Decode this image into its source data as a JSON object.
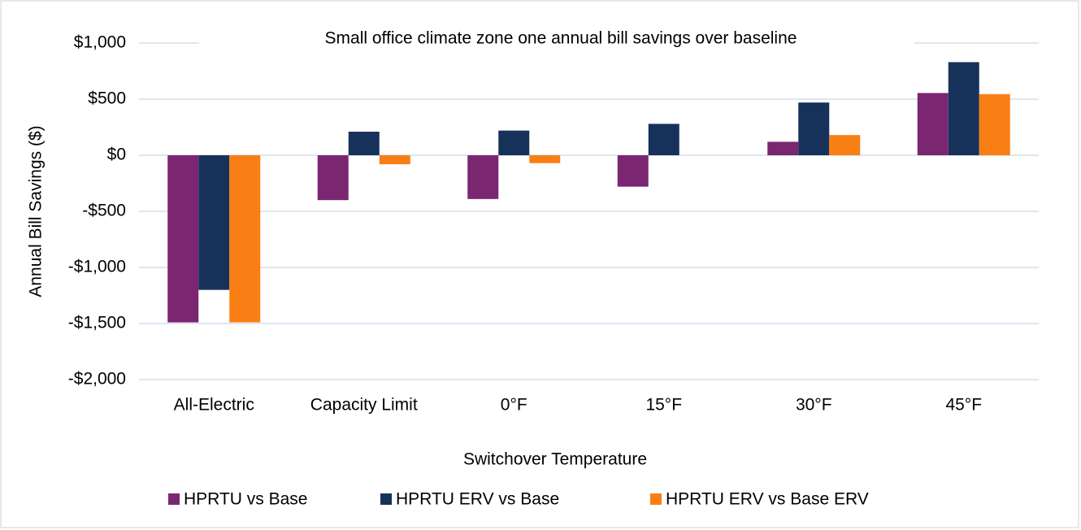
{
  "chart_data": {
    "type": "bar",
    "title": "Small office climate zone one annual bill savings over baseline",
    "x_label": "Switchover Temperature",
    "y_label": "Annual Bill Savings ($)",
    "categories": [
      "All-Electric",
      "Capacity Limit",
      "0°F",
      "15°F",
      "30°F",
      "45°F"
    ],
    "series": [
      {
        "name": "HPRTU vs Base",
        "color": "#7b2671",
        "values": [
          -1490,
          -400,
          -390,
          -280,
          120,
          555
        ]
      },
      {
        "name": "HPRTU ERV vs Base",
        "color": "#17325a",
        "values": [
          -1200,
          210,
          220,
          280,
          470,
          830
        ]
      },
      {
        "name": "HPRTU ERV vs Base ERV",
        "color": "#f97f14",
        "values": [
          -1490,
          -80,
          -70,
          0,
          180,
          545
        ]
      }
    ],
    "ylim": [
      -2000,
      1000
    ],
    "yticks": [
      {
        "value": -2000,
        "label": "-$2,000"
      },
      {
        "value": -1500,
        "label": "-$1,500"
      },
      {
        "value": -1000,
        "label": "-$1,000"
      },
      {
        "value": -500,
        "label": "-$500"
      },
      {
        "value": 0,
        "label": "$0"
      },
      {
        "value": 500,
        "label": "$500"
      },
      {
        "value": 1000,
        "label": "$1,000"
      }
    ],
    "grid": true,
    "legend": "bottom"
  }
}
